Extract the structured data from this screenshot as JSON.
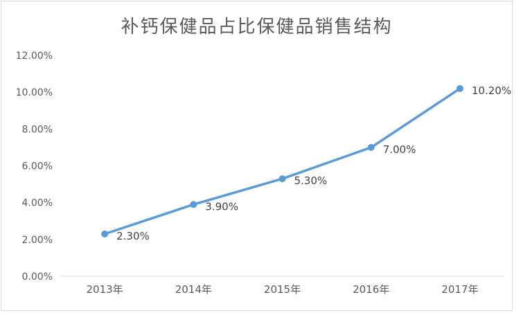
{
  "chart": {
    "title": "补钙保健品占比保健品销售结构"
  },
  "chart_data": {
    "type": "line",
    "title": "补钙保健品占比保健品销售结构",
    "categories": [
      "2013年",
      "2014年",
      "2015年",
      "2016年",
      "2017年"
    ],
    "values": [
      2.3,
      3.9,
      5.3,
      7.0,
      10.2
    ],
    "data_labels": [
      "2.30%",
      "3.90%",
      "5.30%",
      "7.00%",
      "10.20%"
    ],
    "y_axis": {
      "min": 0,
      "max": 12,
      "step": 2,
      "tick_labels": [
        "0.00%",
        "2.00%",
        "4.00%",
        "6.00%",
        "8.00%",
        "10.00%",
        "12.00%"
      ]
    },
    "grid": false,
    "legend_position": "none",
    "marker": "circle",
    "colors": {
      "line": "#5b9bd5",
      "marker": "#5b9bd5",
      "axis_line": "#d9d9d9",
      "title_text": "#595959",
      "tick_text": "#595959",
      "data_label_text": "#404040"
    }
  }
}
